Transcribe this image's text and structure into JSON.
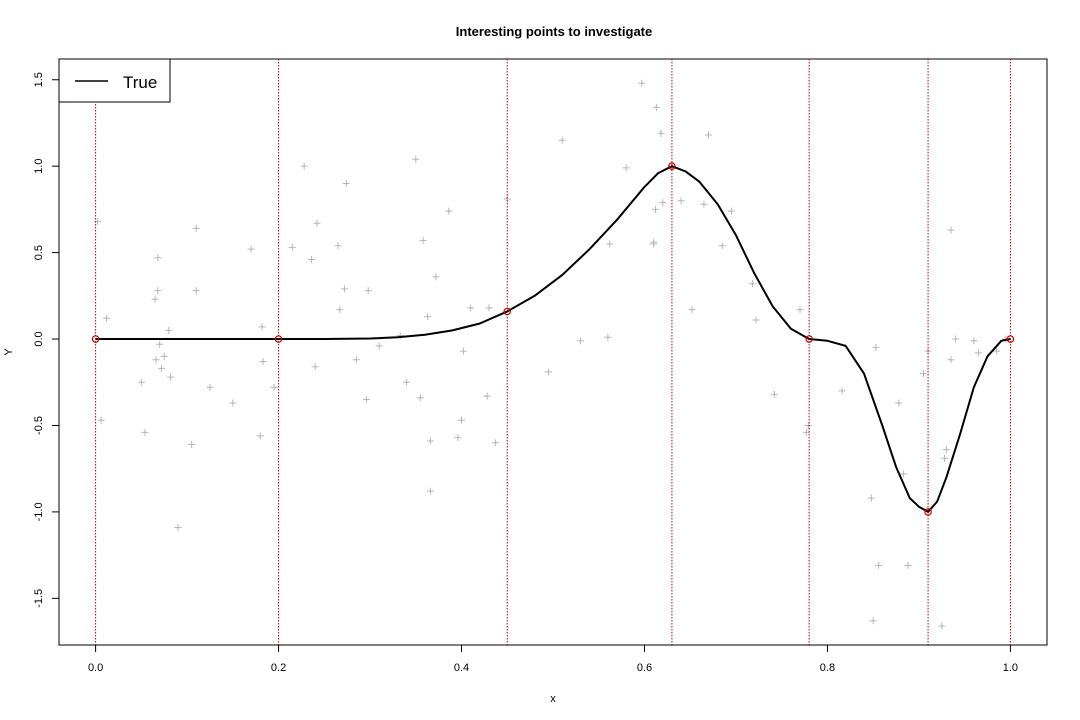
{
  "chart_data": {
    "type": "line",
    "title": "Interesting points to investigate",
    "xlabel": "x",
    "ylabel": "Y",
    "xlim": [
      -0.04,
      1.04
    ],
    "ylim": [
      -1.77,
      1.62
    ],
    "x_ticks": [
      0.0,
      0.2,
      0.4,
      0.6,
      0.8,
      1.0
    ],
    "x_tick_labels": [
      "0.0",
      "0.2",
      "0.4",
      "0.6",
      "0.8",
      "1.0"
    ],
    "y_ticks": [
      -1.5,
      -1.0,
      -0.5,
      0.0,
      0.5,
      1.0,
      1.5
    ],
    "y_tick_labels": [
      "-1.5",
      "-1.0",
      "-0.5",
      "0.0",
      "0.5",
      "1.0",
      "1.5"
    ],
    "grid": false,
    "legend": {
      "position": "top-left",
      "entries": [
        {
          "label": "True",
          "color": "#000000"
        }
      ]
    },
    "series": [
      {
        "name": "True",
        "color": "#000000",
        "x": [
          0.0,
          0.05,
          0.1,
          0.15,
          0.2,
          0.25,
          0.3,
          0.33,
          0.36,
          0.39,
          0.42,
          0.45,
          0.48,
          0.51,
          0.54,
          0.57,
          0.6,
          0.615,
          0.63,
          0.645,
          0.66,
          0.68,
          0.7,
          0.72,
          0.74,
          0.76,
          0.78,
          0.8,
          0.82,
          0.84,
          0.86,
          0.875,
          0.89,
          0.9,
          0.91,
          0.92,
          0.93,
          0.945,
          0.96,
          0.975,
          0.99,
          1.0
        ],
        "y": [
          0.0,
          0.0,
          0.0,
          0.0,
          0.0,
          0.0,
          0.003,
          0.01,
          0.025,
          0.05,
          0.09,
          0.16,
          0.25,
          0.37,
          0.52,
          0.69,
          0.88,
          0.96,
          1.0,
          0.97,
          0.91,
          0.78,
          0.6,
          0.38,
          0.19,
          0.06,
          0.0,
          -0.01,
          -0.04,
          -0.2,
          -0.5,
          -0.74,
          -0.92,
          -0.97,
          -1.0,
          -0.94,
          -0.8,
          -0.55,
          -0.28,
          -0.1,
          -0.01,
          0.0
        ]
      }
    ],
    "interesting_points": {
      "color": "#cc0000",
      "x": [
        0.0,
        0.2,
        0.45,
        0.63,
        0.78,
        0.91,
        1.0
      ],
      "y": [
        0.0,
        0.0,
        0.16,
        1.0,
        0.0,
        -1.0,
        0.0
      ]
    },
    "observations": {
      "color": "#b5b5b5",
      "x": [
        0.002,
        0.006,
        0.012,
        0.05,
        0.054,
        0.065,
        0.066,
        0.068,
        0.068,
        0.07,
        0.072,
        0.075,
        0.08,
        0.082,
        0.09,
        0.105,
        0.11,
        0.11,
        0.125,
        0.15,
        0.17,
        0.18,
        0.182,
        0.183,
        0.195,
        0.215,
        0.228,
        0.236,
        0.24,
        0.242,
        0.265,
        0.267,
        0.272,
        0.274,
        0.285,
        0.296,
        0.298,
        0.31,
        0.333,
        0.34,
        0.35,
        0.355,
        0.358,
        0.363,
        0.366,
        0.366,
        0.372,
        0.386,
        0.396,
        0.4,
        0.402,
        0.41,
        0.428,
        0.43,
        0.437,
        0.45,
        0.495,
        0.51,
        0.53,
        0.56,
        0.562,
        0.58,
        0.597,
        0.61,
        0.61,
        0.612,
        0.613,
        0.618,
        0.62,
        0.64,
        0.652,
        0.665,
        0.67,
        0.685,
        0.695,
        0.718,
        0.722,
        0.742,
        0.77,
        0.777,
        0.779,
        0.816,
        0.848,
        0.85,
        0.853,
        0.856,
        0.878,
        0.883,
        0.888,
        0.905,
        0.91,
        0.925,
        0.928,
        0.93,
        0.935,
        0.935,
        0.94,
        0.96,
        0.965,
        0.985,
        0.995
      ],
      "y": [
        0.68,
        -0.47,
        0.12,
        -0.25,
        -0.54,
        0.23,
        -0.12,
        0.47,
        0.28,
        -0.03,
        -0.17,
        -0.1,
        0.05,
        -0.22,
        -1.09,
        -0.61,
        0.28,
        0.64,
        -0.28,
        -0.37,
        0.52,
        -0.56,
        0.07,
        -0.13,
        -0.28,
        0.53,
        1.0,
        0.46,
        -0.16,
        0.67,
        0.54,
        0.17,
        0.29,
        0.9,
        -0.12,
        -0.35,
        0.28,
        -0.04,
        0.02,
        -0.25,
        1.04,
        -0.34,
        0.57,
        0.13,
        -0.88,
        -0.59,
        0.36,
        0.74,
        -0.57,
        -0.47,
        -0.07,
        0.18,
        -0.33,
        0.18,
        -0.6,
        0.81,
        -0.19,
        1.15,
        -0.01,
        0.01,
        0.55,
        0.99,
        1.48,
        0.56,
        0.55,
        0.75,
        1.34,
        1.19,
        0.79,
        0.8,
        0.17,
        0.78,
        1.18,
        0.54,
        0.74,
        0.32,
        0.11,
        -0.32,
        0.17,
        -0.54,
        -0.5,
        -0.3,
        -0.92,
        -1.63,
        -0.05,
        -1.31,
        -0.37,
        -0.78,
        -1.31,
        -0.2,
        -0.07,
        -1.66,
        -0.69,
        -0.64,
        -0.12,
        0.63,
        0.0,
        -0.01,
        -0.08,
        -0.07,
        0.0
      ]
    }
  }
}
